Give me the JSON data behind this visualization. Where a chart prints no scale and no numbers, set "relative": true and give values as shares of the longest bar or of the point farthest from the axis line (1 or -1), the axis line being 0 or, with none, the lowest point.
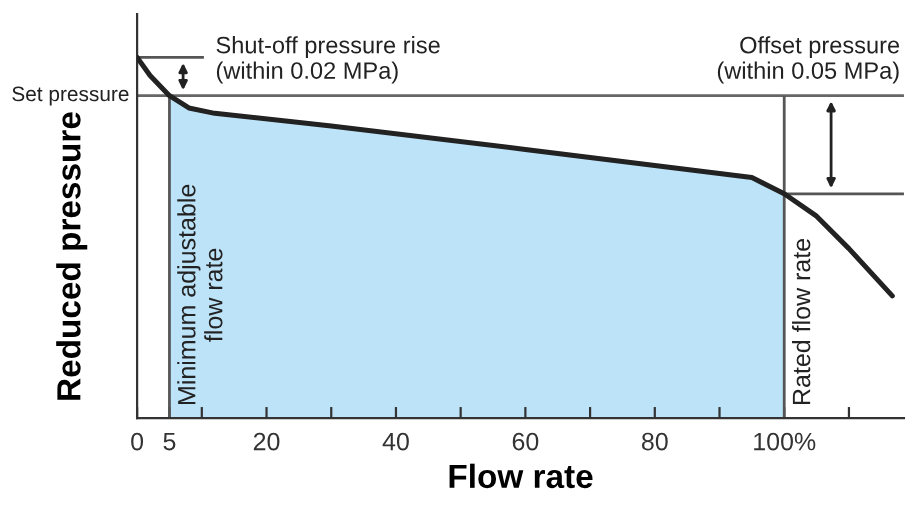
{
  "chart_data": {
    "type": "line",
    "relative": true,
    "xlabel": "Flow rate",
    "ylabel": "Reduced pressure",
    "xlim": [
      0,
      118.5
    ],
    "xticks": [
      0,
      5,
      {
        "value": 10,
        "label": null
      },
      20,
      {
        "value": 30,
        "label": null
      },
      40,
      {
        "value": 50,
        "label": null
      },
      60,
      {
        "value": 70,
        "label": null
      },
      80,
      {
        "value": 90,
        "label": null
      },
      {
        "value": 100,
        "label": "100%"
      },
      {
        "value": 110,
        "label": null
      }
    ],
    "series": [
      {
        "type": "area",
        "color": "#bde3f9",
        "x": [
          5,
          8,
          12,
          30,
          60,
          95,
          100
        ],
        "values": [
          0.894,
          0.86,
          0.845,
          0.81,
          0.745,
          0.667,
          0.622
        ]
      },
      {
        "color": "#222222",
        "x": [
          0,
          2,
          5,
          8,
          12,
          30,
          60,
          95,
          100,
          105,
          110,
          116.7
        ],
        "values": [
          1.0,
          0.95,
          0.894,
          0.86,
          0.845,
          0.81,
          0.745,
          0.667,
          0.622,
          0.56,
          0.47,
          0.339
        ]
      }
    ],
    "ref_lines": [
      {
        "axis": "y",
        "value": 0.894,
        "label": "Set pressure",
        "color": "#666666"
      },
      {
        "axis": "x",
        "value": 5,
        "label": "Minimum adjustable\nflow rate",
        "color": "#555555"
      },
      {
        "axis": "x",
        "value": 100,
        "label": "Rated flow rate",
        "color": "#555555"
      }
    ],
    "annotations": [
      "Shut-off pressure rise\n(within 0.02 MPa)",
      "Offset pressure\n(within 0.05 MPa)"
    ],
    "marker": "none",
    "line_style": "solid",
    "grid": false,
    "legend": false
  }
}
